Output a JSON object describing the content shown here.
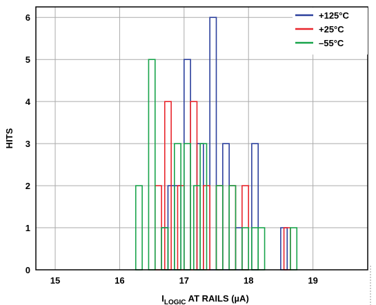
{
  "chart_data": {
    "type": "bar",
    "subtype": "histogram",
    "xlabel_main": "I",
    "xlabel_sub": "LOGIC",
    "xlabel_rest": " AT RAILS (µA)",
    "ylabel": "HITS",
    "xlim": [
      14.7,
      19.85
    ],
    "ylim": [
      0,
      6.25
    ],
    "xticks": [
      15,
      16,
      17,
      18,
      19
    ],
    "yticks": [
      0,
      1,
      2,
      3,
      4,
      5,
      6
    ],
    "xtick_labels": [
      "15",
      "16",
      "17",
      "18",
      "19"
    ],
    "ytick_labels": [
      "0",
      "1",
      "2",
      "3",
      "4",
      "5",
      "6"
    ],
    "grid": true,
    "legend_position": "top-right",
    "bin_width": 0.1,
    "series": [
      {
        "name": "+125°C",
        "color": "#2b3f9c",
        "bins": [
          {
            "x": 16.7,
            "y": 1
          },
          {
            "x": 16.8,
            "y": 2
          },
          {
            "x": 16.9,
            "y": 2
          },
          {
            "x": 17.05,
            "y": 5
          },
          {
            "x": 17.25,
            "y": 3
          },
          {
            "x": 17.45,
            "y": 6
          },
          {
            "x": 17.65,
            "y": 3
          },
          {
            "x": 17.85,
            "y": 1
          },
          {
            "x": 18.1,
            "y": 3
          },
          {
            "x": 18.55,
            "y": 1
          }
        ]
      },
      {
        "name": "+25°C",
        "color": "#e8242b",
        "bins": [
          {
            "x": 16.6,
            "y": 2
          },
          {
            "x": 16.75,
            "y": 4
          },
          {
            "x": 16.95,
            "y": 2
          },
          {
            "x": 17.15,
            "y": 4
          },
          {
            "x": 17.35,
            "y": 2
          },
          {
            "x": 17.55,
            "y": 2
          },
          {
            "x": 17.75,
            "y": 2
          },
          {
            "x": 17.95,
            "y": 2
          },
          {
            "x": 18.6,
            "y": 1
          }
        ]
      },
      {
        "name": "–55°C",
        "color": "#17a34a",
        "bins": [
          {
            "x": 16.3,
            "y": 2
          },
          {
            "x": 16.5,
            "y": 5
          },
          {
            "x": 16.7,
            "y": 1
          },
          {
            "x": 16.9,
            "y": 3
          },
          {
            "x": 17.05,
            "y": 3
          },
          {
            "x": 17.2,
            "y": 2
          },
          {
            "x": 17.3,
            "y": 3
          },
          {
            "x": 17.55,
            "y": 2
          },
          {
            "x": 17.75,
            "y": 2
          },
          {
            "x": 17.95,
            "y": 1
          },
          {
            "x": 18.1,
            "y": 1
          },
          {
            "x": 18.2,
            "y": 1
          },
          {
            "x": 18.7,
            "y": 1
          }
        ]
      }
    ]
  }
}
